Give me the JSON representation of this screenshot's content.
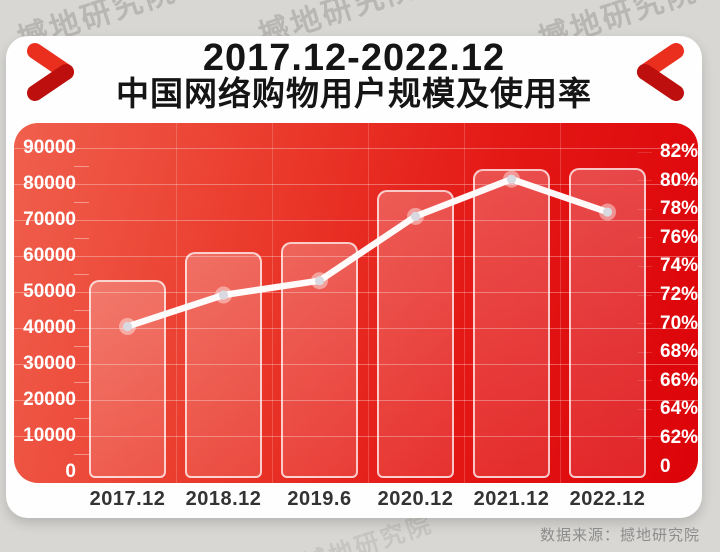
{
  "page": {
    "watermark": "撼地研究院",
    "source_caption": "数据来源：撼地研究院"
  },
  "title": {
    "line1": "2017.12-2022.12",
    "line2": "中国网络购物用户规模及使用率"
  },
  "chart_data": {
    "type": "bar",
    "subtype": "combo-bar-line",
    "title": "2017.12-2022.12 中国网络购物用户规模及使用率",
    "categories": [
      "2017.12",
      "2018.12",
      "2019.6",
      "2020.12",
      "2021.12",
      "2022.12"
    ],
    "series": [
      {
        "name": "用户规模",
        "type": "bar",
        "axis": "left",
        "values": [
          53332,
          61011,
          63882,
          78241,
          84210,
          84529
        ]
      },
      {
        "name": "使用率",
        "type": "line",
        "axis": "right",
        "values_percent": [
          69.8,
          72.0,
          73.0,
          77.5,
          80.1,
          77.8
        ]
      }
    ],
    "left_axis": {
      "min": 0,
      "max": 90000,
      "step": 10000,
      "tick_labels": [
        "90000",
        "80000",
        "70000",
        "60000",
        "50000",
        "40000",
        "30000",
        "20000",
        "10000",
        "0"
      ]
    },
    "right_axis": {
      "visible_min": 62,
      "visible_max": 82,
      "step": 2,
      "tick_labels": [
        "82%",
        "80%",
        "78%",
        "76%",
        "74%",
        "72%",
        "70%",
        "68%",
        "66%",
        "64%",
        "62%"
      ],
      "baseline_label": "0"
    },
    "legend_position": "none",
    "grid": "horizontal gridlines every 10000 with minor ticks every 5000; faint vertical separators between categories"
  },
  "colors": {
    "background": "#d8d7d4",
    "card": "#fefefe",
    "accent_red": "#e60012",
    "plot_gradient_left": "#f0604d",
    "plot_gradient_right": "#dc0309",
    "bar_border": "rgba(255,255,255,0.72)",
    "line": "#ffffff",
    "dot_core": "#d9dae1",
    "axis_text": "#ffffff",
    "x_label_text": "#333333",
    "title_text": "#151515",
    "source_text": "#8c8c8c",
    "chevron_top": "#ea2f1f",
    "chevron_bottom": "#bd100e"
  }
}
